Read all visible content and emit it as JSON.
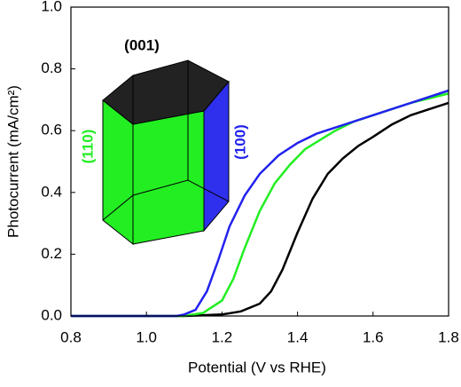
{
  "chart_data": {
    "type": "line",
    "xlabel": "Potential (V vs RHE)",
    "ylabel": "Photocurrent (mA/cm²)",
    "xlim": [
      0.8,
      1.8
    ],
    "xticks": [
      0.8,
      {
        "value": 1,
        "label": "1.0"
      },
      1.2,
      1.4,
      1.6,
      1.8
    ],
    "ylim": [
      0,
      1
    ],
    "yticks": [
      {
        "value": 0,
        "label": "0.0"
      },
      0.2,
      0.4,
      0.6,
      0.8,
      {
        "value": 1,
        "label": "1.0"
      }
    ],
    "series": [
      {
        "color": "#000000",
        "x": [
          0.8,
          1.1,
          1.2,
          1.25,
          1.3,
          1.33,
          1.36,
          1.4,
          1.44,
          1.48,
          1.52,
          1.56,
          1.6,
          1.65,
          1.7,
          1.75,
          1.8
        ],
        "values": [
          0,
          0,
          0.005,
          0.015,
          0.04,
          0.08,
          0.15,
          0.27,
          0.38,
          0.46,
          0.51,
          0.55,
          0.58,
          0.62,
          0.65,
          0.67,
          0.69
        ]
      },
      {
        "color": "#22ee22",
        "x": [
          0.8,
          1.1,
          1.15,
          1.2,
          1.23,
          1.26,
          1.3,
          1.34,
          1.38,
          1.42,
          1.46,
          1.5,
          1.55,
          1.6,
          1.7,
          1.8
        ],
        "values": [
          0,
          0,
          0.01,
          0.05,
          0.12,
          0.22,
          0.34,
          0.43,
          0.49,
          0.54,
          0.57,
          0.6,
          0.63,
          0.65,
          0.69,
          0.72
        ]
      },
      {
        "color": "#2222ee",
        "x": [
          0.8,
          1.08,
          1.1,
          1.13,
          1.16,
          1.19,
          1.22,
          1.26,
          1.3,
          1.35,
          1.4,
          1.45,
          1.5,
          1.6,
          1.7,
          1.8
        ],
        "values": [
          0,
          0,
          0.005,
          0.02,
          0.08,
          0.18,
          0.29,
          0.39,
          0.46,
          0.52,
          0.56,
          0.59,
          0.61,
          0.65,
          0.69,
          0.73
        ]
      }
    ],
    "annotations": [
      {
        "text": "(001)",
        "color": "#000000"
      },
      {
        "text": "(110)",
        "color": "#22ee22"
      },
      {
        "text": "(100)",
        "color": "#2222ee"
      }
    ]
  }
}
